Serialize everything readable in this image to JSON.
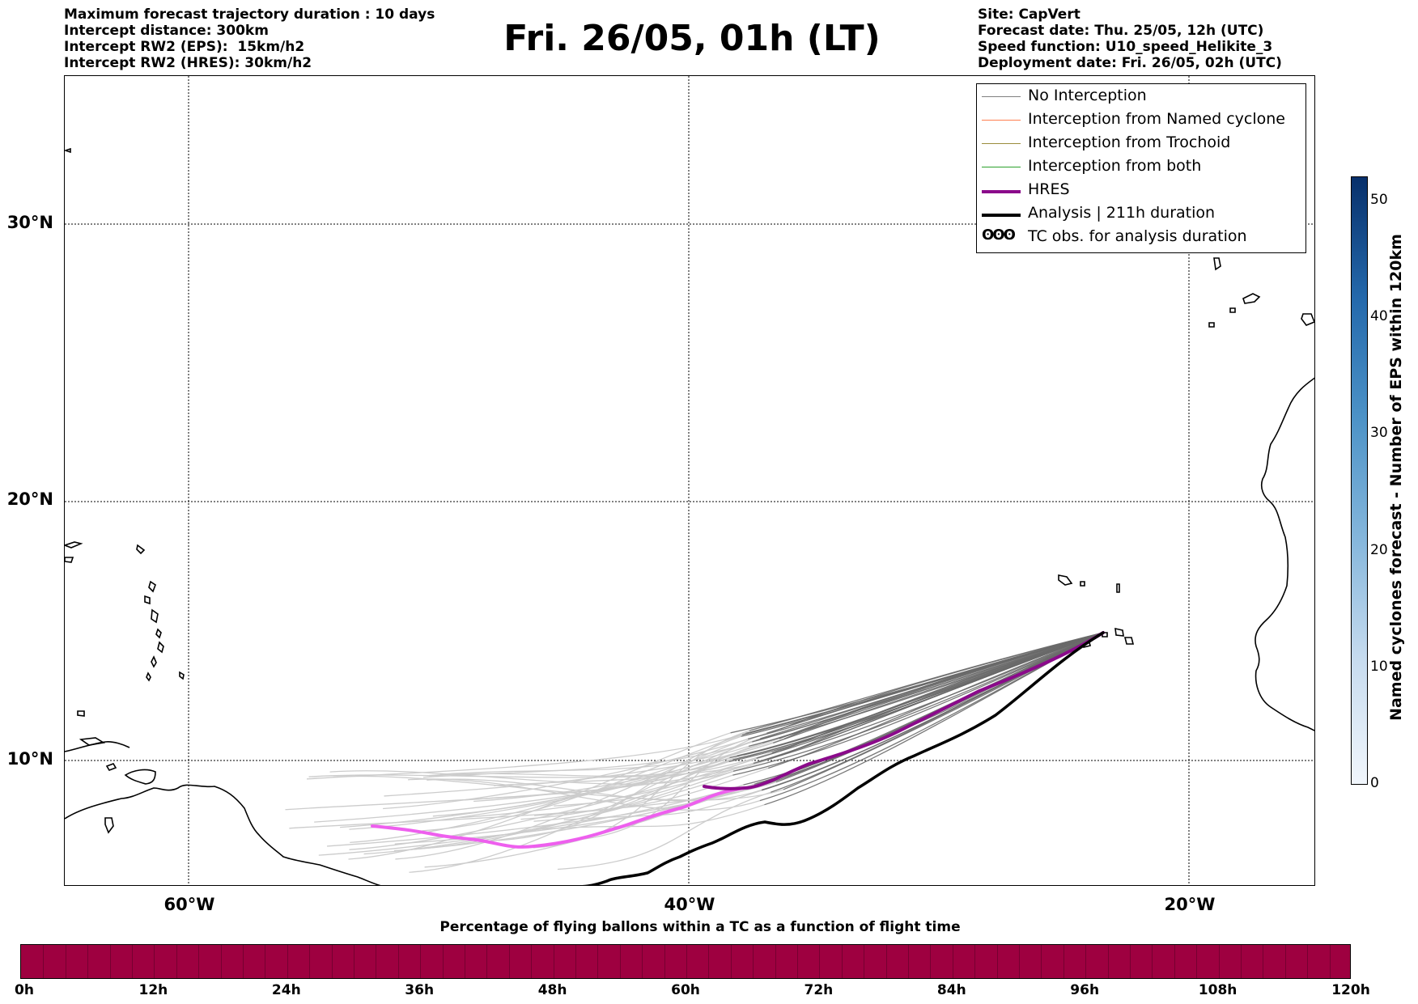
{
  "header_left": [
    "Maximum forecast trajectory duration : 10 days",
    "Intercept distance: 300km",
    "Intercept RW2 (EPS):  15km/h2",
    "Intercept RW2 (HRES): 30km/h2"
  ],
  "header_right": [
    "Site: CapVert",
    "Forecast date: Thu. 25/05, 12h (UTC)",
    "Speed function: U10_speed_Helikite_3",
    "Deployment date: Fri. 26/05, 02h (UTC)"
  ],
  "title": "Fri. 26/05, 01h (LT)",
  "map": {
    "lon_range": [
      -65,
      -15
    ],
    "lat_range": [
      5.4,
      34.6
    ],
    "lat_labels": [
      "30°N",
      "20°N",
      "10°N"
    ],
    "lon_labels": [
      "60°W",
      "40°W",
      "20°W"
    ],
    "hres_color_early": "#ee5fee",
    "hres_color_late": "#8b0a8b",
    "analysis_color": "#000000",
    "ensemble_late_color": "#696969",
    "ensemble_early_color": "#cccccc"
  },
  "legend": {
    "items": [
      {
        "label": "No Interception",
        "color": "#808080",
        "style": "thin"
      },
      {
        "label": "Interception from Named cyclone",
        "color": "#ff7f50",
        "style": "thin"
      },
      {
        "label": "Interception from Trochoid",
        "color": "#9a8c3c",
        "style": "thin"
      },
      {
        "label": "Interception from both",
        "color": "#2ca02c",
        "style": "thin"
      },
      {
        "label": "HRES",
        "color": "#8b0a8b",
        "style": "thick"
      },
      {
        "label": "Analysis | 211h duration",
        "color": "#000000",
        "style": "thick"
      },
      {
        "label": "TC obs. for analysis duration",
        "color": "#000000",
        "style": "symbol",
        "symbol": "ʘʘʘ"
      }
    ]
  },
  "colorbar_right": {
    "label": "Named cyclones forecast - Number of EPS within 120km",
    "ticks": [
      "0",
      "10",
      "20",
      "30",
      "40",
      "50"
    ],
    "max": 52
  },
  "colorbar_bottom": {
    "title": "Percentage of flying ballons within a TC as a function of flight time",
    "ticks": [
      "0h",
      "12h",
      "24h",
      "36h",
      "48h",
      "60h",
      "72h",
      "84h",
      "96h",
      "108h",
      "120h"
    ],
    "fill_color": "#9e0040"
  }
}
